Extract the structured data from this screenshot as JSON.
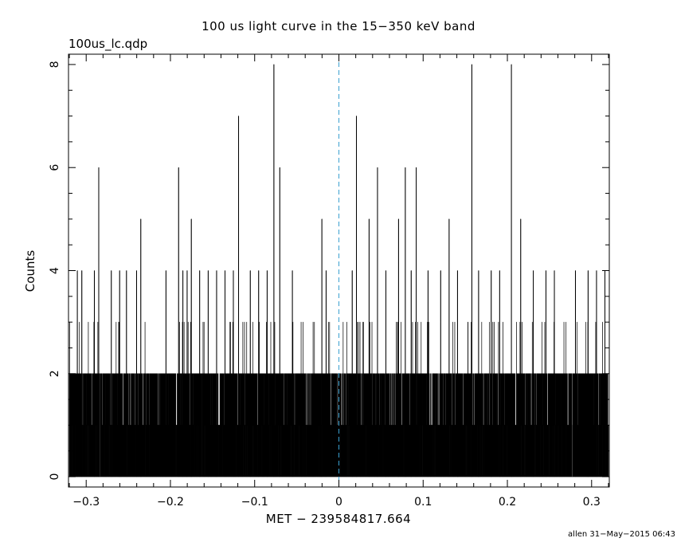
{
  "chart_data": {
    "type": "histogram-step",
    "title": "100 us light curve in the 15−350 keV band",
    "subtitle": "100us_lc.qdp",
    "xlabel": "MET − 239584817.664",
    "ylabel": "Counts",
    "xlim": [
      -0.321,
      0.321
    ],
    "ylim": [
      -0.2,
      8.2
    ],
    "x_ticks": [
      -0.3,
      -0.2,
      -0.1,
      0,
      0.1,
      0.2,
      0.3
    ],
    "x_tick_labels": [
      "−0.3",
      "−0.2",
      "−0.1",
      "0",
      "0.1",
      "0.2",
      "0.3"
    ],
    "y_ticks": [
      0,
      2,
      4,
      6,
      8
    ],
    "y_tick_labels": [
      "0",
      "2",
      "4",
      "6",
      "8"
    ],
    "bin_width": 0.0001,
    "bin_start": -0.32,
    "n_bins": 6400,
    "trigger_marker_x": 0,
    "peaks": [
      {
        "x": -0.3105,
        "y": 4
      },
      {
        "x": -0.3052,
        "y": 4
      },
      {
        "x": -0.2903,
        "y": 4
      },
      {
        "x": -0.2851,
        "y": 6
      },
      {
        "x": -0.2702,
        "y": 4
      },
      {
        "x": -0.2603,
        "y": 4
      },
      {
        "x": -0.2522,
        "y": 4
      },
      {
        "x": -0.2402,
        "y": 4
      },
      {
        "x": -0.2352,
        "y": 5
      },
      {
        "x": -0.2053,
        "y": 4
      },
      {
        "x": -0.1903,
        "y": 6
      },
      {
        "x": -0.1852,
        "y": 4
      },
      {
        "x": -0.1802,
        "y": 4
      },
      {
        "x": -0.1752,
        "y": 5
      },
      {
        "x": -0.1653,
        "y": 4
      },
      {
        "x": -0.1552,
        "y": 4
      },
      {
        "x": -0.1452,
        "y": 4
      },
      {
        "x": -0.1352,
        "y": 4
      },
      {
        "x": -0.1253,
        "y": 4
      },
      {
        "x": -0.1191,
        "y": 7
      },
      {
        "x": -0.1052,
        "y": 4
      },
      {
        "x": -0.0953,
        "y": 4
      },
      {
        "x": -0.0852,
        "y": 4
      },
      {
        "x": -0.0772,
        "y": 8
      },
      {
        "x": -0.0702,
        "y": 6
      },
      {
        "x": -0.0552,
        "y": 4
      },
      {
        "x": -0.0202,
        "y": 5
      },
      {
        "x": -0.0152,
        "y": 4
      },
      {
        "x": 0.0158,
        "y": 4
      },
      {
        "x": 0.0208,
        "y": 7
      },
      {
        "x": 0.0358,
        "y": 5
      },
      {
        "x": 0.0458,
        "y": 6
      },
      {
        "x": 0.0558,
        "y": 4
      },
      {
        "x": 0.0708,
        "y": 5
      },
      {
        "x": 0.0788,
        "y": 6
      },
      {
        "x": 0.0858,
        "y": 4
      },
      {
        "x": 0.0918,
        "y": 6
      },
      {
        "x": 0.1058,
        "y": 4
      },
      {
        "x": 0.1208,
        "y": 4
      },
      {
        "x": 0.1308,
        "y": 5
      },
      {
        "x": 0.1408,
        "y": 4
      },
      {
        "x": 0.1578,
        "y": 8
      },
      {
        "x": 0.1658,
        "y": 4
      },
      {
        "x": 0.1808,
        "y": 4
      },
      {
        "x": 0.1908,
        "y": 4
      },
      {
        "x": 0.2048,
        "y": 8
      },
      {
        "x": 0.2158,
        "y": 5
      },
      {
        "x": 0.2308,
        "y": 4
      },
      {
        "x": 0.2458,
        "y": 4
      },
      {
        "x": 0.2558,
        "y": 4
      },
      {
        "x": 0.2808,
        "y": 4
      },
      {
        "x": 0.2958,
        "y": 4
      },
      {
        "x": 0.3058,
        "y": 4
      },
      {
        "x": 0.3158,
        "y": 4
      }
    ],
    "grid": false,
    "legend": "none"
  },
  "footer": {
    "credit": "allen 31−May−2015 06:43"
  },
  "colors": {
    "background": "#ffffff",
    "axes": "#000000",
    "data": "#000000",
    "trigger_line": "#3aa0d0"
  }
}
